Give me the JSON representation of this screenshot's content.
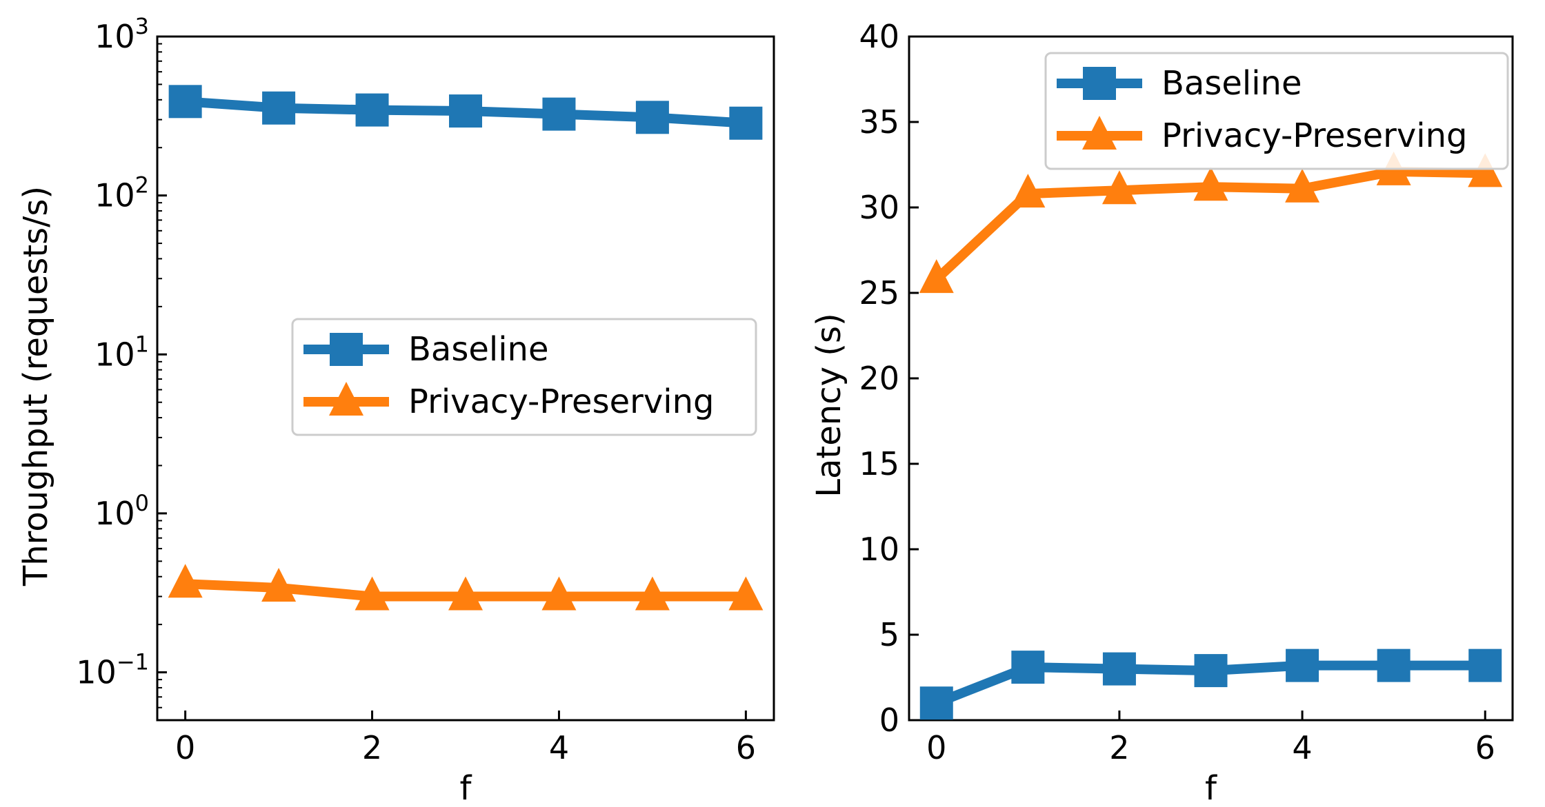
{
  "colors": {
    "baseline": "#1f77b4",
    "privacy": "#ff7f0e",
    "axis": "#000000",
    "legend_border": "#cccccc"
  },
  "chart_data": [
    {
      "type": "line",
      "scale_y": "log",
      "x": [
        0,
        1,
        2,
        3,
        4,
        5,
        6
      ],
      "xlim": [
        -0.3,
        6.3
      ],
      "ylim": [
        0.05,
        1000
      ],
      "xticks": [
        0,
        2,
        4,
        6
      ],
      "yticks": [
        {
          "value": 0.1,
          "base": "10",
          "exp": "−1"
        },
        {
          "value": 1,
          "base": "10",
          "exp": "0"
        },
        {
          "value": 10,
          "base": "10",
          "exp": "1"
        },
        {
          "value": 100,
          "base": "10",
          "exp": "2"
        },
        {
          "value": 1000,
          "base": "10",
          "exp": "3"
        }
      ],
      "xlabel": "f",
      "ylabel": "Throughput (requests/s)",
      "legend": {
        "placement": "center-right"
      },
      "series": [
        {
          "name": "Baseline",
          "marker": "square",
          "color_key": "baseline",
          "values": [
            390,
            355,
            345,
            340,
            325,
            310,
            285
          ]
        },
        {
          "name": "Privacy-Preserving",
          "marker": "triangle",
          "color_key": "privacy",
          "values": [
            0.36,
            0.34,
            0.3,
            0.3,
            0.3,
            0.3,
            0.3
          ]
        }
      ]
    },
    {
      "type": "line",
      "scale_y": "linear",
      "x": [
        0,
        1,
        2,
        3,
        4,
        5,
        6
      ],
      "xlim": [
        -0.3,
        6.3
      ],
      "ylim": [
        0,
        40
      ],
      "xticks": [
        0,
        2,
        4,
        6
      ],
      "yticks": [
        0,
        5,
        10,
        15,
        20,
        25,
        30,
        35,
        40
      ],
      "xlabel": "f",
      "ylabel": "Latency (s)",
      "legend": {
        "placement": "top-right"
      },
      "series": [
        {
          "name": "Baseline",
          "marker": "square",
          "color_key": "baseline",
          "values": [
            1.0,
            3.1,
            3.0,
            2.9,
            3.2,
            3.2,
            3.2
          ]
        },
        {
          "name": "Privacy-Preserving",
          "marker": "triangle",
          "color_key": "privacy",
          "values": [
            25.8,
            30.8,
            31.0,
            31.2,
            31.1,
            32.1,
            32.0
          ]
        }
      ]
    }
  ]
}
